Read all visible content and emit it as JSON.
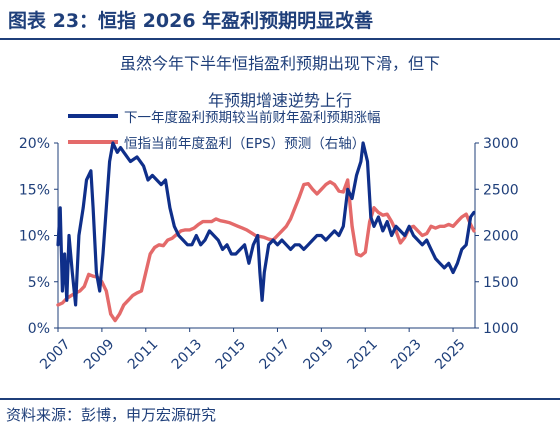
{
  "header": {
    "title": "图表 23：恒指 2026 年盈利预期明显改善"
  },
  "source": "资料来源：彭博，申万宏源研究",
  "colors": {
    "navy": "#0f2f8a",
    "red": "#e46a6a",
    "text": "#1f3f7a"
  },
  "chart_data": {
    "type": "line",
    "title": [
      "虽然今年下半年恒指盈利预期出现下滑，但下",
      "年预期增速逆势上行"
    ],
    "legend_position": "top-left",
    "grid": false,
    "x_ticks": [
      "2007",
      "2009",
      "2011",
      "2013",
      "2015",
      "2017",
      "2019",
      "2021",
      "2023",
      "2025"
    ],
    "xlim": [
      2007,
      2026
    ],
    "y_left": {
      "ticks": [
        "0%",
        "5%",
        "10%",
        "15%",
        "20%"
      ],
      "lim": [
        0,
        20
      ]
    },
    "y_right": {
      "ticks": [
        "1000",
        "1500",
        "2000",
        "2500",
        "3000"
      ],
      "lim": [
        1000,
        3000
      ]
    },
    "series": [
      {
        "name": "下一年度盈利预期较当前财年盈利预期涨幅",
        "axis": "left",
        "color": "#0f2f8a",
        "points": [
          [
            2007.0,
            9
          ],
          [
            2007.1,
            13
          ],
          [
            2007.2,
            4
          ],
          [
            2007.3,
            8
          ],
          [
            2007.4,
            3
          ],
          [
            2007.5,
            10
          ],
          [
            2007.65,
            6
          ],
          [
            2007.8,
            2.5
          ],
          [
            2007.95,
            10
          ],
          [
            2008.15,
            13
          ],
          [
            2008.3,
            16
          ],
          [
            2008.5,
            17
          ],
          [
            2008.6,
            13
          ],
          [
            2008.75,
            6
          ],
          [
            2008.9,
            4
          ],
          [
            2009.05,
            8
          ],
          [
            2009.2,
            13
          ],
          [
            2009.35,
            18
          ],
          [
            2009.5,
            20
          ],
          [
            2009.7,
            19
          ],
          [
            2009.85,
            19.5
          ],
          [
            2010.0,
            19
          ],
          [
            2010.3,
            18
          ],
          [
            2010.6,
            18.5
          ],
          [
            2010.9,
            17.5
          ],
          [
            2011.1,
            16
          ],
          [
            2011.3,
            16.5
          ],
          [
            2011.5,
            16
          ],
          [
            2011.7,
            15.5
          ],
          [
            2011.9,
            16
          ],
          [
            2012.1,
            13
          ],
          [
            2012.3,
            11
          ],
          [
            2012.5,
            10
          ],
          [
            2012.7,
            9.5
          ],
          [
            2012.9,
            9
          ],
          [
            2013.1,
            9
          ],
          [
            2013.3,
            10
          ],
          [
            2013.5,
            9
          ],
          [
            2013.7,
            9.5
          ],
          [
            2013.9,
            10.5
          ],
          [
            2014.1,
            10
          ],
          [
            2014.3,
            9.5
          ],
          [
            2014.5,
            8.5
          ],
          [
            2014.7,
            9
          ],
          [
            2014.9,
            8
          ],
          [
            2015.1,
            8
          ],
          [
            2015.3,
            8.5
          ],
          [
            2015.5,
            9
          ],
          [
            2015.7,
            7
          ],
          [
            2015.9,
            9
          ],
          [
            2016.1,
            10
          ],
          [
            2016.2,
            6
          ],
          [
            2016.3,
            3
          ],
          [
            2016.4,
            6
          ],
          [
            2016.6,
            9
          ],
          [
            2016.8,
            9.5
          ],
          [
            2017.0,
            9
          ],
          [
            2017.2,
            9.5
          ],
          [
            2017.4,
            9
          ],
          [
            2017.6,
            8.5
          ],
          [
            2017.8,
            9
          ],
          [
            2018.0,
            9
          ],
          [
            2018.2,
            8.5
          ],
          [
            2018.4,
            9
          ],
          [
            2018.6,
            9.5
          ],
          [
            2018.8,
            10
          ],
          [
            2019.0,
            10
          ],
          [
            2019.2,
            9.5
          ],
          [
            2019.4,
            10
          ],
          [
            2019.6,
            10.5
          ],
          [
            2019.8,
            10
          ],
          [
            2020.0,
            11
          ],
          [
            2020.2,
            15
          ],
          [
            2020.4,
            14
          ],
          [
            2020.6,
            16.5
          ],
          [
            2020.8,
            18
          ],
          [
            2020.9,
            20
          ],
          [
            2021.0,
            19
          ],
          [
            2021.1,
            18
          ],
          [
            2021.25,
            12
          ],
          [
            2021.4,
            11
          ],
          [
            2021.6,
            12
          ],
          [
            2021.8,
            10.5
          ],
          [
            2022.0,
            11.5
          ],
          [
            2022.2,
            10
          ],
          [
            2022.4,
            11
          ],
          [
            2022.6,
            10.5
          ],
          [
            2022.8,
            10
          ],
          [
            2023.0,
            11
          ],
          [
            2023.2,
            10
          ],
          [
            2023.4,
            9.5
          ],
          [
            2023.6,
            9
          ],
          [
            2023.8,
            9.5
          ],
          [
            2024.0,
            8.5
          ],
          [
            2024.2,
            7.5
          ],
          [
            2024.4,
            7
          ],
          [
            2024.6,
            6.5
          ],
          [
            2024.8,
            7
          ],
          [
            2025.0,
            6
          ],
          [
            2025.2,
            7
          ],
          [
            2025.4,
            8.5
          ],
          [
            2025.6,
            9
          ],
          [
            2025.8,
            12
          ],
          [
            2025.95,
            12.5
          ]
        ]
      },
      {
        "name": "恒指当前年度盈利（EPS）预测（右轴）",
        "axis": "right",
        "color": "#e46a6a",
        "points": [
          [
            2007.0,
            1250
          ],
          [
            2007.2,
            1270
          ],
          [
            2007.4,
            1320
          ],
          [
            2007.6,
            1350
          ],
          [
            2007.8,
            1380
          ],
          [
            2008.0,
            1400
          ],
          [
            2008.2,
            1450
          ],
          [
            2008.4,
            1580
          ],
          [
            2008.6,
            1560
          ],
          [
            2008.8,
            1550
          ],
          [
            2009.0,
            1500
          ],
          [
            2009.2,
            1400
          ],
          [
            2009.4,
            1150
          ],
          [
            2009.6,
            1080
          ],
          [
            2009.8,
            1150
          ],
          [
            2010.0,
            1250
          ],
          [
            2010.2,
            1300
          ],
          [
            2010.4,
            1350
          ],
          [
            2010.6,
            1380
          ],
          [
            2010.8,
            1400
          ],
          [
            2011.0,
            1600
          ],
          [
            2011.2,
            1800
          ],
          [
            2011.4,
            1870
          ],
          [
            2011.6,
            1900
          ],
          [
            2011.8,
            1890
          ],
          [
            2012.0,
            1950
          ],
          [
            2012.2,
            1970
          ],
          [
            2012.4,
            2010
          ],
          [
            2012.6,
            2050
          ],
          [
            2012.8,
            2060
          ],
          [
            2013.0,
            2060
          ],
          [
            2013.2,
            2080
          ],
          [
            2013.4,
            2120
          ],
          [
            2013.6,
            2150
          ],
          [
            2013.8,
            2150
          ],
          [
            2014.0,
            2150
          ],
          [
            2014.2,
            2180
          ],
          [
            2014.4,
            2160
          ],
          [
            2014.6,
            2150
          ],
          [
            2014.8,
            2140
          ],
          [
            2015.0,
            2120
          ],
          [
            2015.2,
            2100
          ],
          [
            2015.4,
            2080
          ],
          [
            2015.6,
            2060
          ],
          [
            2015.8,
            2030
          ],
          [
            2016.0,
            2000
          ],
          [
            2016.2,
            1990
          ],
          [
            2016.4,
            1980
          ],
          [
            2016.6,
            1960
          ],
          [
            2016.8,
            1950
          ],
          [
            2017.0,
            2000
          ],
          [
            2017.2,
            2050
          ],
          [
            2017.4,
            2100
          ],
          [
            2017.6,
            2180
          ],
          [
            2017.8,
            2300
          ],
          [
            2018.0,
            2420
          ],
          [
            2018.2,
            2550
          ],
          [
            2018.4,
            2560
          ],
          [
            2018.6,
            2500
          ],
          [
            2018.8,
            2450
          ],
          [
            2019.0,
            2500
          ],
          [
            2019.2,
            2550
          ],
          [
            2019.4,
            2580
          ],
          [
            2019.6,
            2550
          ],
          [
            2019.8,
            2480
          ],
          [
            2020.0,
            2470
          ],
          [
            2020.2,
            2600
          ],
          [
            2020.4,
            2100
          ],
          [
            2020.6,
            1800
          ],
          [
            2020.8,
            1780
          ],
          [
            2021.0,
            1820
          ],
          [
            2021.2,
            2150
          ],
          [
            2021.4,
            2300
          ],
          [
            2021.6,
            2250
          ],
          [
            2021.8,
            2220
          ],
          [
            2022.0,
            2230
          ],
          [
            2022.2,
            2150
          ],
          [
            2022.4,
            2050
          ],
          [
            2022.6,
            1920
          ],
          [
            2022.8,
            1980
          ],
          [
            2023.0,
            2080
          ],
          [
            2023.2,
            2100
          ],
          [
            2023.4,
            2050
          ],
          [
            2023.6,
            2000
          ],
          [
            2023.8,
            2020
          ],
          [
            2024.0,
            2100
          ],
          [
            2024.2,
            2080
          ],
          [
            2024.4,
            2100
          ],
          [
            2024.6,
            2100
          ],
          [
            2024.8,
            2120
          ],
          [
            2025.0,
            2100
          ],
          [
            2025.2,
            2150
          ],
          [
            2025.4,
            2200
          ],
          [
            2025.6,
            2230
          ],
          [
            2025.8,
            2120
          ],
          [
            2025.95,
            2050
          ]
        ]
      }
    ]
  }
}
